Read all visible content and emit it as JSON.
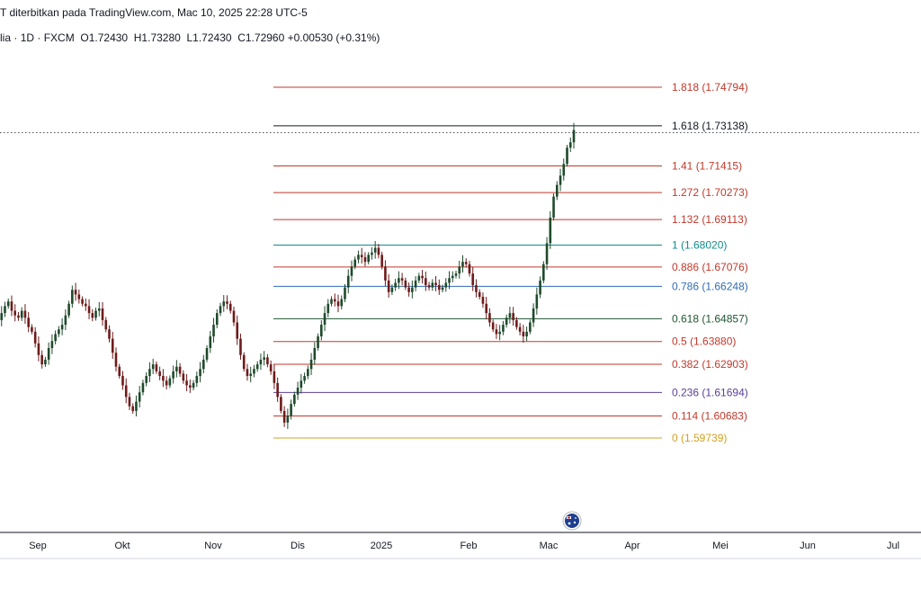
{
  "header": {
    "published": "T diterbitkan pada TradingView.com, Mac 10, 2025 22:28 UTC-5",
    "symbol_tail": "lia",
    "interval": "1D",
    "source": "FXCM",
    "open": "O1.72430",
    "high": "H1.73280",
    "low": "L1.72430",
    "close": "C1.72960",
    "change": "+0.00530 (+0.31%)"
  },
  "colors": {
    "up": "#1f4a2c",
    "down": "#6e1b1b",
    "axis": "#131722",
    "flag_blue": "#1e3f8f",
    "flag_red": "#d32f2f"
  },
  "chart_data": {
    "type": "candlestick",
    "ylim": [
      1.575,
      1.764
    ],
    "x_ticks": [
      "Sep",
      "Okt",
      "Nov",
      "Dis",
      "2025",
      "Feb",
      "Mac",
      "Apr",
      "Mei",
      "Jun",
      "Jul"
    ],
    "last_price": 1.7296,
    "fib_levels": [
      {
        "ratio": "1.818",
        "price": 1.74794,
        "label": "1.818 (1.74794)",
        "color": "#c0392b"
      },
      {
        "ratio": "1.618",
        "price": 1.73138,
        "label": "1.618 (1.73138)",
        "color": "#131722"
      },
      {
        "ratio": "1.41",
        "price": 1.71415,
        "label": "1.41 (1.71415)",
        "color": "#c0392b"
      },
      {
        "ratio": "1.272",
        "price": 1.70273,
        "label": "1.272 (1.70273)",
        "color": "#c0392b"
      },
      {
        "ratio": "1.132",
        "price": 1.69113,
        "label": "1.132 (1.69113)",
        "color": "#c0392b"
      },
      {
        "ratio": "1",
        "price": 1.6802,
        "label": "1 (1.68020)",
        "color": "#138b8b"
      },
      {
        "ratio": "0.886",
        "price": 1.67076,
        "label": "0.886 (1.67076)",
        "color": "#c0392b"
      },
      {
        "ratio": "0.786",
        "price": 1.66248,
        "label": "0.786 (1.66248)",
        "color": "#2f6db5"
      },
      {
        "ratio": "0.618",
        "price": 1.64857,
        "label": "0.618 (1.64857)",
        "color": "#1e5631"
      },
      {
        "ratio": "0.5",
        "price": 1.6388,
        "label": "0.5 (1.63880)",
        "color": "#c0392b"
      },
      {
        "ratio": "0.382",
        "price": 1.62903,
        "label": "0.382 (1.62903)",
        "color": "#c0392b"
      },
      {
        "ratio": "0.236",
        "price": 1.61694,
        "label": "0.236 (1.61694)",
        "color": "#5b3e96"
      },
      {
        "ratio": "0.114",
        "price": 1.60683,
        "label": "0.114 (1.60683)",
        "color": "#c0392b"
      },
      {
        "ratio": "0",
        "price": 1.59739,
        "label": "0 (1.59739)",
        "color": "#d4a020"
      }
    ],
    "closes": [
      1.648,
      1.651,
      1.654,
      1.656,
      1.652,
      1.65,
      1.649,
      1.652,
      1.649,
      1.645,
      1.643,
      1.638,
      1.633,
      1.629,
      1.631,
      1.636,
      1.639,
      1.642,
      1.644,
      1.646,
      1.65,
      1.655,
      1.661,
      1.659,
      1.657,
      1.655,
      1.654,
      1.651,
      1.649,
      1.652,
      1.653,
      1.648,
      1.644,
      1.64,
      1.634,
      1.628,
      1.624,
      1.62,
      1.615,
      1.611,
      1.609,
      1.613,
      1.617,
      1.621,
      1.624,
      1.627,
      1.629,
      1.626,
      1.624,
      1.622,
      1.62,
      1.623,
      1.626,
      1.628,
      1.625,
      1.622,
      1.62,
      1.619,
      1.621,
      1.624,
      1.627,
      1.631,
      1.636,
      1.641,
      1.646,
      1.651,
      1.654,
      1.656,
      1.655,
      1.652,
      1.647,
      1.64,
      1.633,
      1.627,
      1.624,
      1.625,
      1.627,
      1.629,
      1.631,
      1.632,
      1.629,
      1.626,
      1.621,
      1.615,
      1.609,
      1.604,
      1.607,
      1.612,
      1.616,
      1.619,
      1.622,
      1.624,
      1.627,
      1.631,
      1.636,
      1.641,
      1.646,
      1.651,
      1.655,
      1.657,
      1.656,
      1.654,
      1.657,
      1.662,
      1.667,
      1.671,
      1.674,
      1.676,
      1.675,
      1.673,
      1.676,
      1.677,
      1.679,
      1.676,
      1.671,
      1.665,
      1.66,
      1.662,
      1.664,
      1.666,
      1.665,
      1.662,
      1.66,
      1.662,
      1.665,
      1.667,
      1.666,
      1.663,
      1.662,
      1.664,
      1.663,
      1.661,
      1.662,
      1.664,
      1.666,
      1.667,
      1.668,
      1.671,
      1.673,
      1.672,
      1.668,
      1.663,
      1.66,
      1.658,
      1.655,
      1.651,
      1.647,
      1.644,
      1.642,
      1.643,
      1.646,
      1.649,
      1.651,
      1.648,
      1.645,
      1.643,
      1.641,
      1.643,
      1.647,
      1.653,
      1.659,
      1.665,
      1.672,
      1.681,
      1.692,
      1.701,
      1.706,
      1.71,
      1.715,
      1.722,
      1.7243,
      1.7296
    ]
  }
}
